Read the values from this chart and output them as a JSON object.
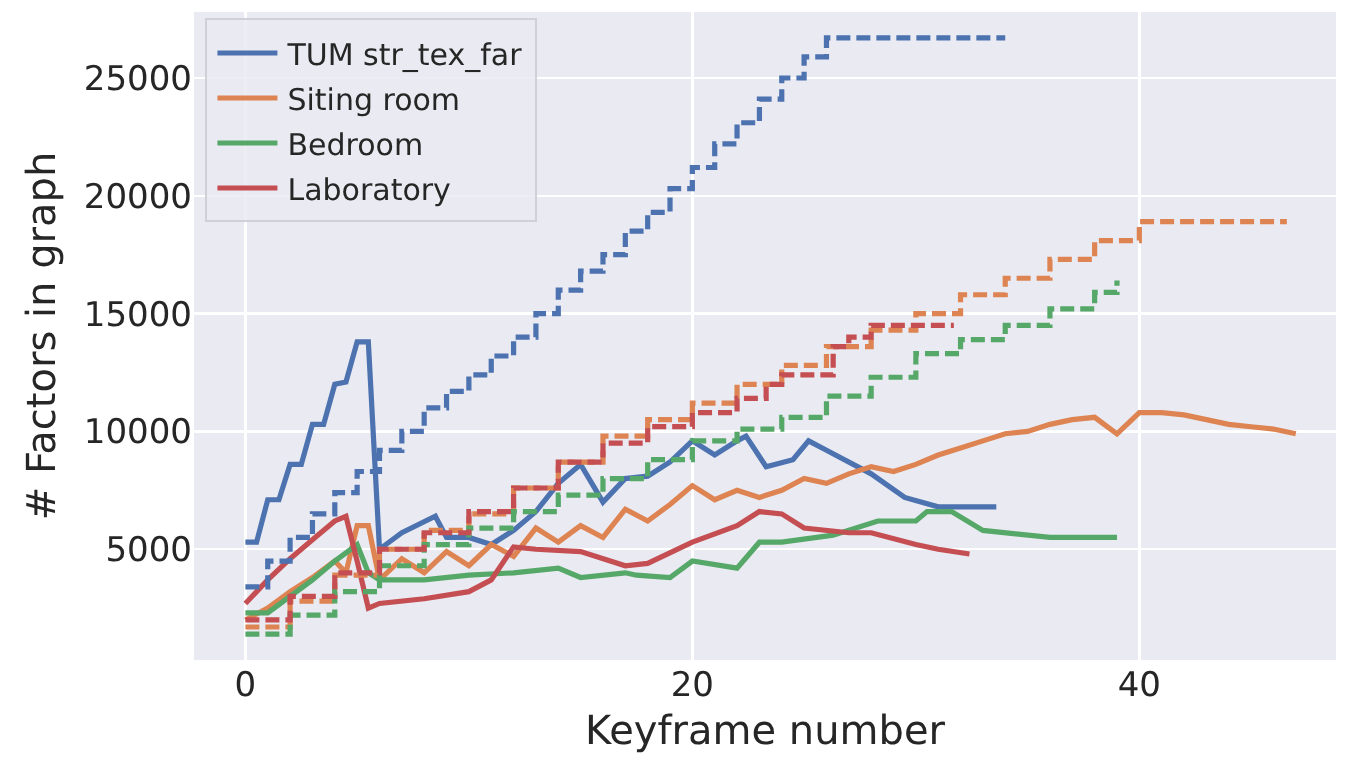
{
  "chart_data": {
    "type": "line",
    "xlabel": "Keyframe number",
    "ylabel": "# Factors in graph",
    "xlim": [
      -2.3,
      48.8
    ],
    "ylim": [
      300,
      27800
    ],
    "xticks": [
      0,
      20,
      40
    ],
    "yticks": [
      5000,
      10000,
      15000,
      20000,
      25000
    ],
    "grid": true,
    "legend": "top left",
    "marker": "none",
    "series": [
      {
        "name": "TUM str_tex_far",
        "color": "#4c72b0",
        "line_style": "solid",
        "x": [
          0,
          0.5,
          1,
          1.5,
          2,
          2.5,
          3,
          3.5,
          4,
          4.5,
          5,
          5.5,
          6,
          7,
          8.5,
          9,
          10,
          11,
          12,
          13,
          14,
          15,
          16,
          17,
          18,
          19,
          20,
          21,
          22,
          22.4,
          23.3,
          24.5,
          25.2,
          26,
          28,
          29.5,
          31,
          33.6
        ],
        "values": [
          5300,
          5300,
          7100,
          7100,
          8600,
          8600,
          10300,
          10300,
          12000,
          12100,
          13800,
          13800,
          5000,
          5700,
          6400,
          5500,
          5500,
          5200,
          5800,
          6600,
          7800,
          8600,
          7000,
          8000,
          8100,
          8700,
          9600,
          9000,
          9600,
          9800,
          8500,
          8800,
          9600,
          9200,
          8200,
          7200,
          6800,
          6800
        ]
      },
      {
        "name": "Siting room",
        "color": "#dd8452",
        "line_style": "solid",
        "x": [
          0,
          1,
          2,
          3,
          4,
          4.5,
          5,
          5.5,
          6,
          7,
          8,
          9,
          10,
          11,
          12,
          13,
          14,
          15,
          16,
          17,
          18,
          19,
          20,
          21,
          22,
          23,
          24,
          25,
          26,
          27,
          28,
          29,
          30,
          31,
          32,
          33,
          34,
          35,
          36,
          37,
          38,
          39,
          40,
          41,
          42,
          43,
          44,
          45,
          46,
          47
        ],
        "values": [
          2000,
          2500,
          3200,
          3800,
          4500,
          4000,
          6000,
          6000,
          3700,
          4600,
          4000,
          4900,
          4300,
          5200,
          4700,
          5900,
          5300,
          6000,
          5500,
          6700,
          6200,
          6900,
          7700,
          7100,
          7500,
          7200,
          7500,
          8000,
          7800,
          8200,
          8500,
          8300,
          8600,
          9000,
          9300,
          9600,
          9900,
          10000,
          10300,
          10500,
          10600,
          9900,
          10800,
          10800,
          10700,
          10500,
          10300,
          10200,
          10100,
          9900
        ]
      },
      {
        "name": "Bedroom",
        "color": "#55a868",
        "line_style": "solid",
        "x": [
          0,
          1,
          2,
          3,
          4,
          5,
          5.5,
          6,
          8,
          10,
          12,
          14,
          15,
          17,
          17.5,
          19,
          20,
          22,
          23,
          24,
          26.3,
          28.3,
          30,
          30.5,
          31.6,
          33,
          36,
          39
        ],
        "values": [
          2300,
          2300,
          3000,
          3700,
          4500,
          5200,
          4000,
          3700,
          3700,
          3900,
          4000,
          4200,
          3800,
          4000,
          3900,
          3800,
          4500,
          4200,
          5300,
          5300,
          5600,
          6200,
          6200,
          6600,
          6600,
          5800,
          5500,
          5500
        ]
      },
      {
        "name": "Laboratory",
        "color": "#c44e52",
        "line_style": "solid",
        "x": [
          0,
          1,
          2,
          3,
          4,
          4.5,
          5,
          5.5,
          6,
          8,
          10,
          11,
          12,
          13,
          15,
          17,
          18,
          20,
          22,
          23,
          24,
          25,
          27,
          28,
          30,
          31,
          32.4
        ],
        "values": [
          2700,
          3700,
          4600,
          5400,
          6200,
          6400,
          4500,
          2500,
          2700,
          2900,
          3200,
          3700,
          5100,
          5000,
          4900,
          4300,
          4400,
          5300,
          6000,
          6600,
          6500,
          5900,
          5700,
          5700,
          5200,
          5000,
          4800
        ]
      },
      {
        "type": "step",
        "color": "#4c72b0",
        "line_style": "dashed",
        "x": [
          0,
          1,
          2,
          3,
          4,
          5,
          6,
          7,
          8,
          9,
          10,
          11,
          12,
          13,
          14,
          15,
          16,
          17,
          18,
          19,
          20,
          21,
          22,
          23,
          24,
          25,
          26,
          34
        ],
        "values": [
          3400,
          4500,
          5500,
          6500,
          7400,
          8300,
          9200,
          10000,
          11000,
          11700,
          12400,
          13200,
          14000,
          15000,
          16000,
          16800,
          17500,
          18500,
          19300,
          20300,
          21200,
          22200,
          23100,
          24100,
          25000,
          25900,
          26700,
          26700
        ]
      },
      {
        "type": "step",
        "color": "#dd8452",
        "line_style": "dashed",
        "x": [
          0,
          2,
          4,
          6,
          8,
          10,
          12,
          14,
          16,
          18,
          20,
          22,
          24,
          26,
          28,
          30,
          32,
          34,
          36,
          38,
          40,
          46.6
        ],
        "values": [
          1700,
          2800,
          3900,
          5000,
          5800,
          6500,
          7600,
          8700,
          9800,
          10500,
          11200,
          12000,
          12800,
          13600,
          14300,
          15000,
          15800,
          16500,
          17300,
          18100,
          18900,
          18900
        ]
      },
      {
        "type": "step",
        "color": "#55a868",
        "line_style": "dashed",
        "x": [
          0,
          2,
          4,
          6,
          8,
          10,
          12,
          14,
          16,
          18,
          20,
          22,
          24,
          26,
          28,
          30,
          32,
          34,
          36,
          38,
          39
        ],
        "values": [
          1400,
          2200,
          3200,
          4300,
          5200,
          5900,
          6600,
          7300,
          8000,
          8800,
          9600,
          10100,
          10600,
          11500,
          12300,
          13300,
          13900,
          14500,
          15200,
          15900,
          16400
        ]
      },
      {
        "type": "step",
        "color": "#c44e52",
        "line_style": "dashed",
        "x": [
          0,
          2,
          4,
          6,
          8,
          10,
          12,
          14,
          16,
          18,
          20,
          22,
          23.3,
          24,
          26.3,
          27,
          28,
          31.7
        ],
        "values": [
          2000,
          3000,
          4000,
          5000,
          5700,
          6600,
          7600,
          8700,
          9500,
          10200,
          10800,
          11400,
          12000,
          12400,
          13600,
          14000,
          14500,
          14500
        ]
      }
    ]
  }
}
